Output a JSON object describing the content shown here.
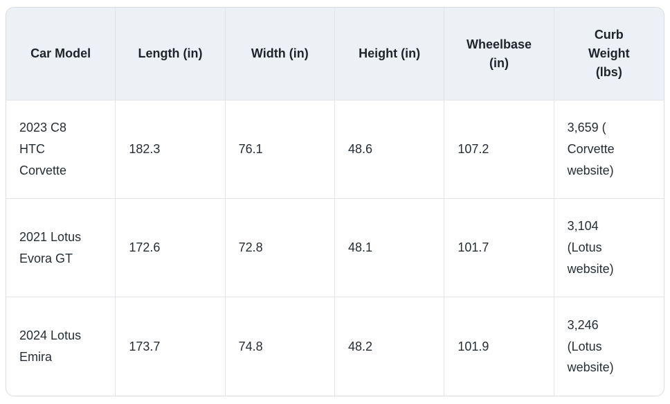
{
  "colors": {
    "header_background": "#edf0f4",
    "body_background": "#ffffff",
    "grid_line": "#e2e5e9",
    "outer_border": "#d8dde3",
    "header_text": "#1d242c",
    "body_text": "#262d34"
  },
  "table": {
    "columns": [
      {
        "key": "car-model",
        "label": "Car Model"
      },
      {
        "key": "length",
        "label": "Length (in)"
      },
      {
        "key": "width",
        "label": "Width (in)"
      },
      {
        "key": "height",
        "label": "Height (in)"
      },
      {
        "key": "wheelbase",
        "label": "Wheelbase (in)"
      },
      {
        "key": "curb-weight",
        "label": "Curb Weight (lbs)"
      }
    ],
    "rows": [
      {
        "cells": [
          "2023 C8 HTC Corvette",
          "182.3",
          "76.1",
          "48.6",
          "107.2",
          "3,659 ( Corvette website)"
        ]
      },
      {
        "cells": [
          "2021 Lotus Evora GT",
          "172.6",
          "72.8",
          "48.1",
          "101.7",
          "3,104 (Lotus website)"
        ]
      },
      {
        "cells": [
          "2024 Lotus Emira",
          "173.7",
          "74.8",
          "48.2",
          "101.9",
          "3,246 (Lotus website)"
        ]
      }
    ]
  },
  "chart_data": {
    "type": "table",
    "title": "",
    "columns": [
      "Car Model",
      "Length (in)",
      "Width (in)",
      "Height (in)",
      "Wheelbase (in)",
      "Curb Weight (lbs)"
    ],
    "rows": [
      [
        "2023 C8 HTC Corvette",
        182.3,
        76.1,
        48.6,
        107.2,
        "3,659 ( Corvette website)"
      ],
      [
        "2021 Lotus Evora GT",
        172.6,
        72.8,
        48.1,
        101.7,
        "3,104 (Lotus website)"
      ],
      [
        "2024 Lotus Emira",
        173.7,
        74.8,
        48.2,
        101.9,
        "3,246 (Lotus website)"
      ]
    ]
  }
}
